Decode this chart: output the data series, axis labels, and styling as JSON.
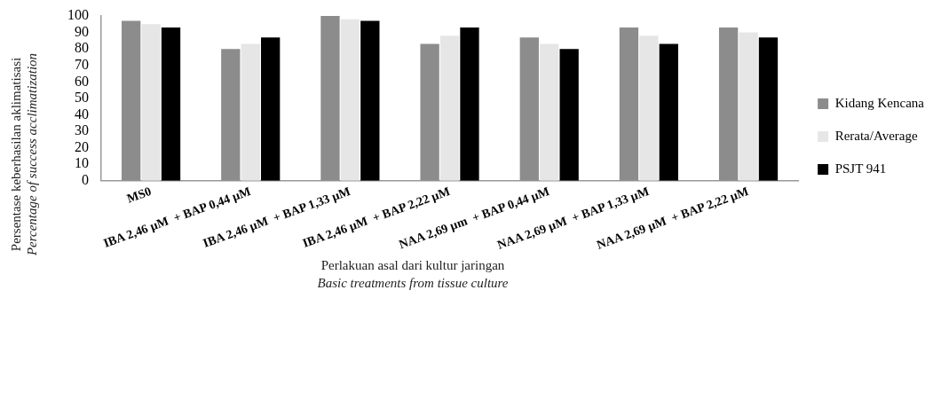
{
  "chart_data": {
    "type": "bar",
    "xlabel": "Perlakuan asal dari kultur jaringan\nBasic treatments from tissue culture",
    "ylabel": "Persentase keberhasilan aklimatisasi\nPercentage of success acclimatization",
    "categories": [
      "MS0",
      "IBA 2,46 µM  + BAP 0,44 µM",
      "IBA 2,46 µM  + BAP 1,33 µM",
      "IBA 2,46 µM  + BAP 2,22 µM",
      "NAA 2,69 µm  + BAP 0,44 µM",
      "NAA 2,69 µM  + BAP 1,33 µM",
      "NAA 2,69 µM  + BAP 2,22 µM"
    ],
    "series": [
      {
        "name": "Kidang Kencana",
        "color": "#8c8c8c",
        "values": [
          97,
          80,
          100,
          83,
          87,
          93,
          93
        ]
      },
      {
        "name": "Rerata/Average",
        "color": "#e6e6e6",
        "values": [
          95,
          83,
          98,
          88,
          83,
          88,
          90
        ]
      },
      {
        "name": "PSJT 941",
        "color": "#000000",
        "values": [
          93,
          87,
          97,
          93,
          80,
          83,
          87
        ]
      }
    ],
    "ylim": [
      0,
      100
    ],
    "yticks": [
      0,
      10,
      20,
      30,
      40,
      50,
      60,
      70,
      80,
      90,
      100
    ],
    "grid": false,
    "legend": "right"
  }
}
